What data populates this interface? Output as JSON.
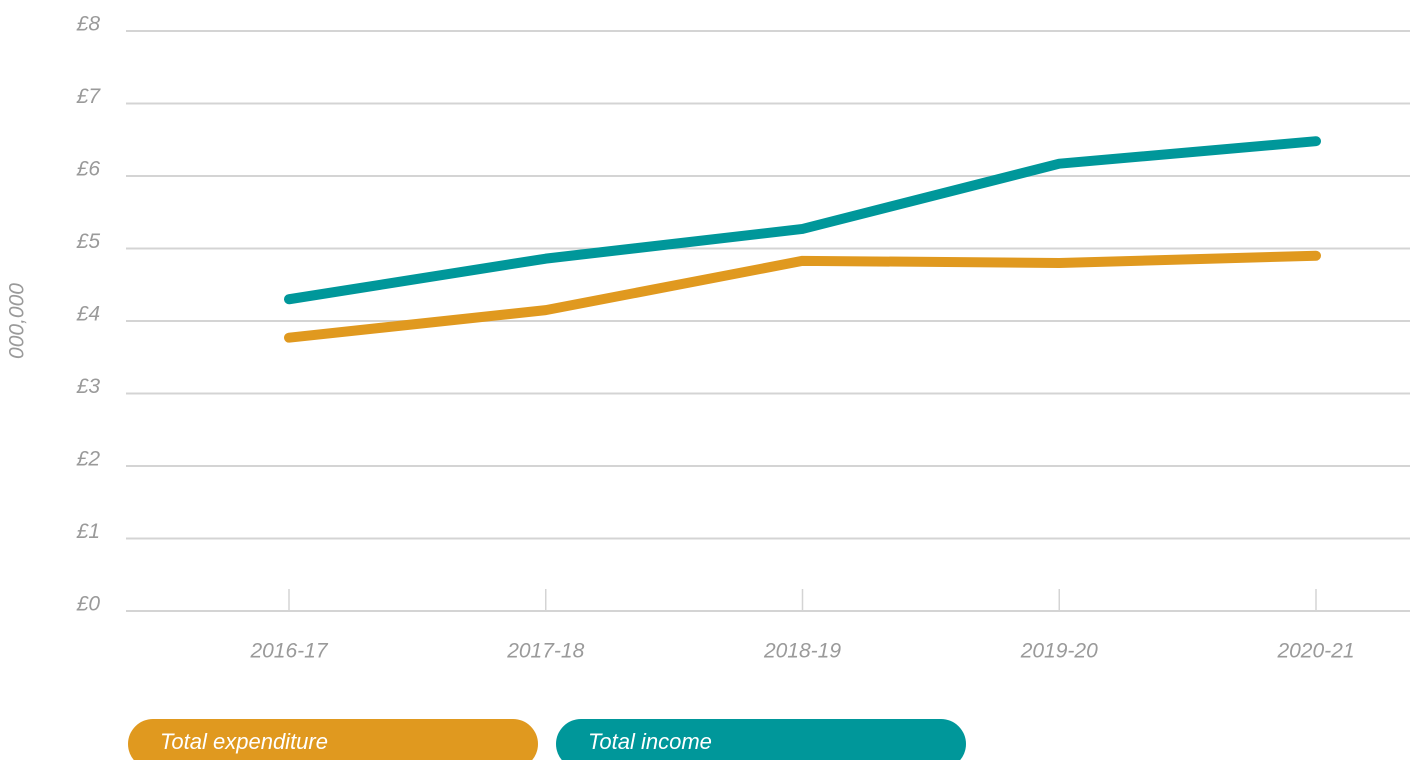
{
  "chart_data": {
    "type": "line",
    "y_label": "000,000",
    "categories": [
      "2016-17",
      "2017-18",
      "2018-19",
      "2019-20",
      "2020-21"
    ],
    "series": [
      {
        "name": "Total expenditure",
        "color": "#e0991f",
        "values": [
          3.77,
          4.15,
          4.83,
          4.8,
          4.9
        ]
      },
      {
        "name": "Total income",
        "color": "#00979a",
        "values": [
          4.3,
          4.86,
          5.27,
          6.17,
          6.48
        ]
      }
    ],
    "ylim": [
      0,
      8
    ],
    "yticks": [
      {
        "value": 0,
        "label": "£0"
      },
      {
        "value": 1,
        "label": "£1"
      },
      {
        "value": 2,
        "label": "£2"
      },
      {
        "value": 3,
        "label": "£3"
      },
      {
        "value": 4,
        "label": "£4"
      },
      {
        "value": 5,
        "label": "£5"
      },
      {
        "value": 6,
        "label": "£6"
      },
      {
        "value": 7,
        "label": "£7"
      },
      {
        "value": 8,
        "label": "£8"
      }
    ],
    "grid": true
  }
}
